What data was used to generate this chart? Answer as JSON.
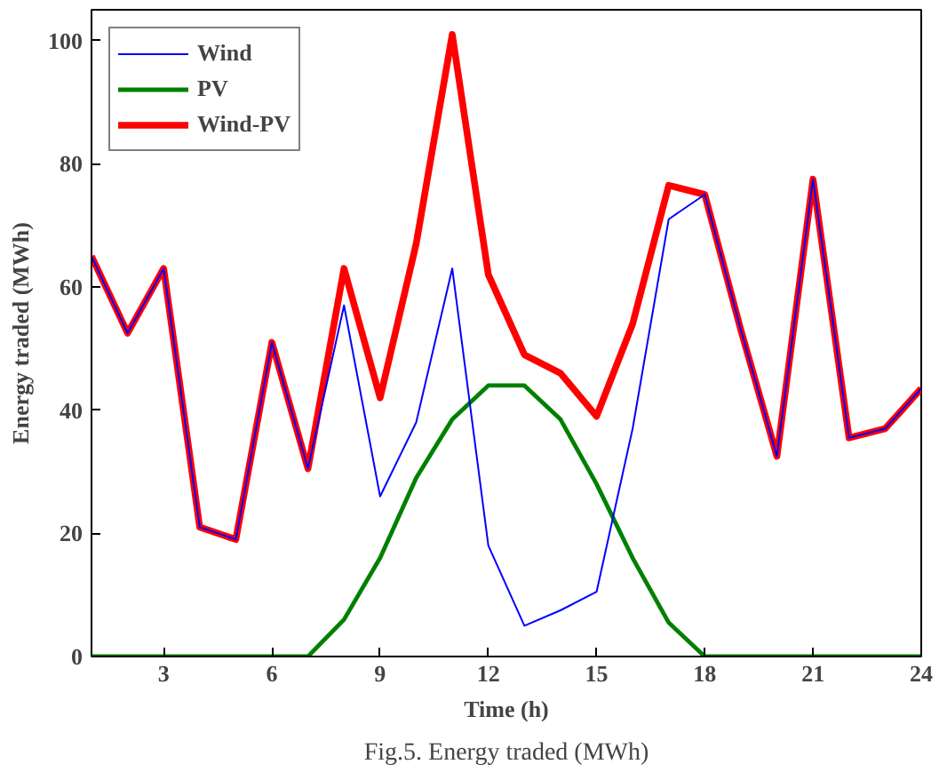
{
  "chart_data": {
    "type": "line",
    "xlabel": "Time (h)",
    "ylabel": "Energy traded (MWh)",
    "x": [
      1,
      2,
      3,
      4,
      5,
      6,
      7,
      8,
      9,
      10,
      11,
      12,
      13,
      14,
      15,
      16,
      17,
      18,
      19,
      20,
      21,
      22,
      23,
      24
    ],
    "series": [
      {
        "name": "Wind",
        "color": "#0000ff",
        "values": [
          65,
          52.5,
          63,
          21,
          19,
          51,
          30.5,
          57,
          26,
          38,
          63,
          18,
          5,
          7.5,
          10.5,
          37,
          71,
          75,
          53,
          32.5,
          77.5,
          35.5,
          37,
          43.5
        ]
      },
      {
        "name": "PV",
        "color": "#008000",
        "values": [
          0,
          0,
          0,
          0,
          0,
          0,
          0,
          6,
          16,
          29,
          38.5,
          44,
          44,
          38.5,
          28,
          16,
          5.5,
          0,
          0,
          0,
          0,
          0,
          0,
          0
        ]
      },
      {
        "name": "Wind-PV",
        "color": "#ff0000",
        "values": [
          65,
          52.5,
          63,
          21,
          19,
          51,
          30.5,
          63,
          42,
          67,
          101,
          62,
          49,
          46,
          39,
          54,
          76.5,
          75,
          53,
          32.5,
          77.5,
          35.5,
          37,
          43.5
        ]
      }
    ],
    "xlim": [
      1,
      24
    ],
    "ylim": [
      0,
      105
    ],
    "xticks": [
      3,
      6,
      9,
      12,
      15,
      18,
      21,
      24
    ],
    "yticks": [
      0,
      20,
      40,
      60,
      80,
      100
    ],
    "grid": false,
    "legend": "top left",
    "marker": "none",
    "line_style": "solid",
    "annotations": [
      "Fig.5. Energy traded (MWh)"
    ]
  }
}
